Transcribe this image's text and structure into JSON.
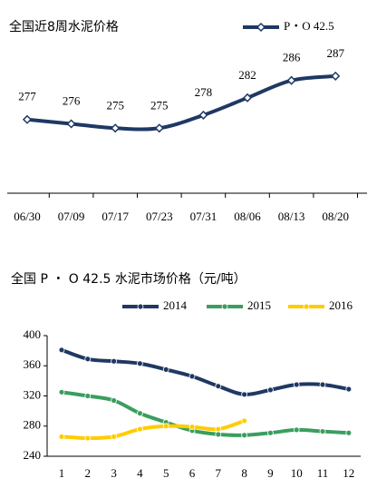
{
  "chart_data": [
    {
      "type": "line",
      "title": "全国近8周水泥价格",
      "categories": [
        "06/30",
        "07/09",
        "07/17",
        "07/23",
        "07/31",
        "08/06",
        "08/13",
        "08/20"
      ],
      "series": [
        {
          "name": "P・O 42.5",
          "color": "#1f3864",
          "values": [
            277,
            276,
            275,
            275,
            278,
            282,
            286,
            287
          ]
        }
      ],
      "ylim": [
        260,
        292
      ],
      "data_labels": true,
      "marker": "diamond",
      "legend": "top-right"
    },
    {
      "type": "line",
      "title": "全国 P ・ O 42.5 水泥市场价格（元/吨）",
      "categories": [
        "1",
        "2",
        "3",
        "4",
        "5",
        "6",
        "7",
        "8",
        "9",
        "10",
        "11",
        "12"
      ],
      "series": [
        {
          "name": "2014",
          "color": "#1f3864",
          "values": [
            381,
            369,
            366,
            363,
            355,
            346,
            333,
            322,
            328,
            335,
            335,
            329
          ]
        },
        {
          "name": "2015",
          "color": "#3a9e5f",
          "values": [
            325,
            320,
            314,
            297,
            285,
            274,
            269,
            268,
            271,
            275,
            273,
            271
          ]
        },
        {
          "name": "2016",
          "color": "#ffcc00",
          "values": [
            266,
            264,
            266,
            276,
            280,
            279,
            276,
            287,
            null,
            null,
            null,
            null
          ]
        }
      ],
      "ylim": [
        240,
        400
      ],
      "yticks": [
        240,
        280,
        320,
        360,
        400
      ],
      "marker": "circle",
      "legend": "top"
    }
  ]
}
